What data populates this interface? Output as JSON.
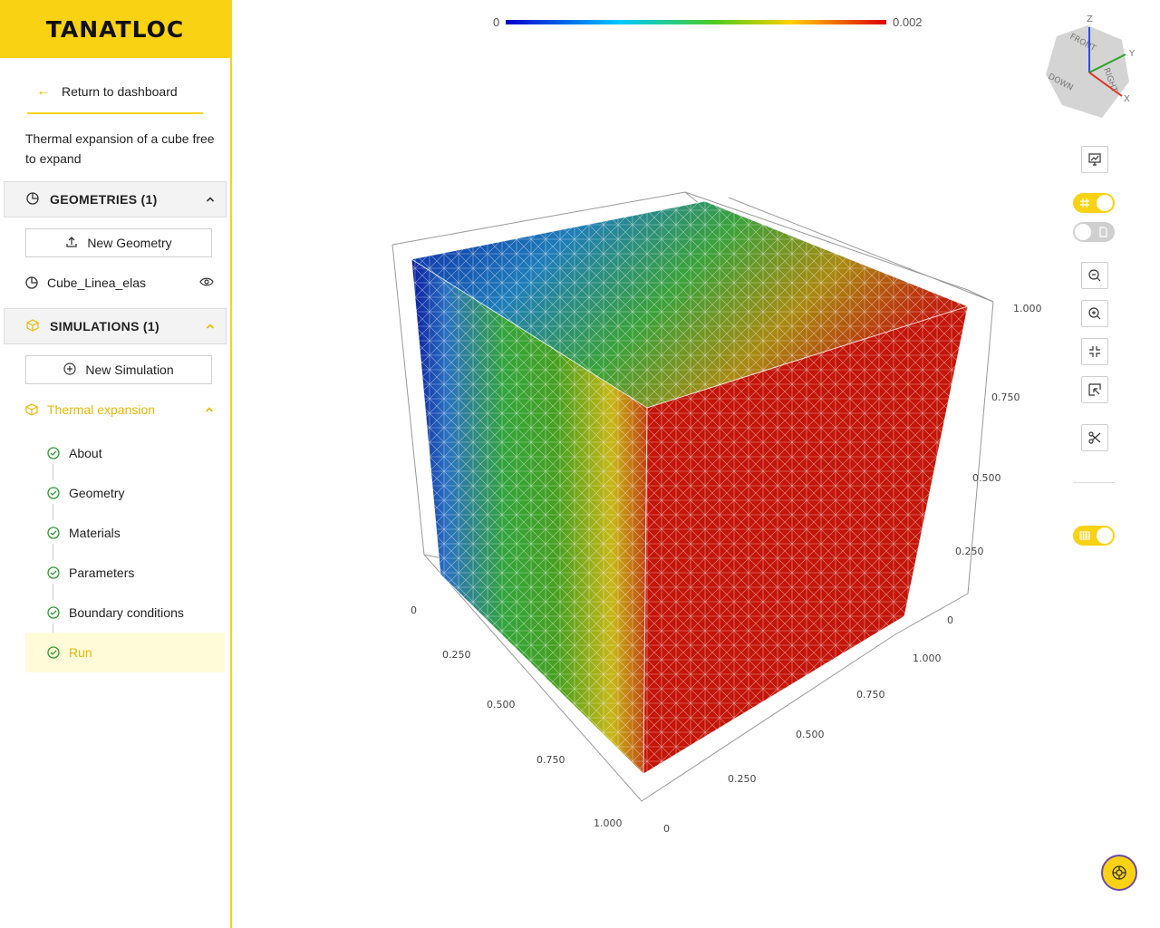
{
  "brand": {
    "logo_text": "TANATLOC"
  },
  "sidebar": {
    "back_label": "Return to dashboard",
    "project_description": "Thermal expansion of a cube free to expand",
    "geometries": {
      "header": "GEOMETRIES (1)",
      "new_button": "New Geometry",
      "items": [
        {
          "label": "Cube_Linea_elas"
        }
      ]
    },
    "simulations": {
      "header": "SIMULATIONS (1)",
      "new_button": "New Simulation",
      "items": [
        {
          "label": "Thermal expansion"
        }
      ],
      "steps": [
        {
          "label": "About"
        },
        {
          "label": "Geometry"
        },
        {
          "label": "Materials"
        },
        {
          "label": "Parameters"
        },
        {
          "label": "Boundary conditions"
        },
        {
          "label": "Run"
        }
      ]
    }
  },
  "viewer": {
    "colorbar": {
      "min": "0",
      "max": "0.002"
    },
    "axes": {
      "vertical_ticks": [
        "0",
        "0.250",
        "0.500",
        "0.750",
        "1.000"
      ],
      "left_ticks": [
        "0",
        "0.250",
        "0.500",
        "0.750",
        "1.000"
      ],
      "right_ticks": [
        "0",
        "0.250",
        "0.500",
        "0.750",
        "1.000"
      ]
    },
    "orientation_cube": {
      "z": "Z",
      "y": "Y",
      "x": "X",
      "front": "FRONT",
      "right": "RIGHT",
      "down": "DOWN"
    }
  },
  "colors": {
    "accent": "#fad214",
    "accent_text": "#e8b800",
    "check": "#2e9a2e"
  }
}
